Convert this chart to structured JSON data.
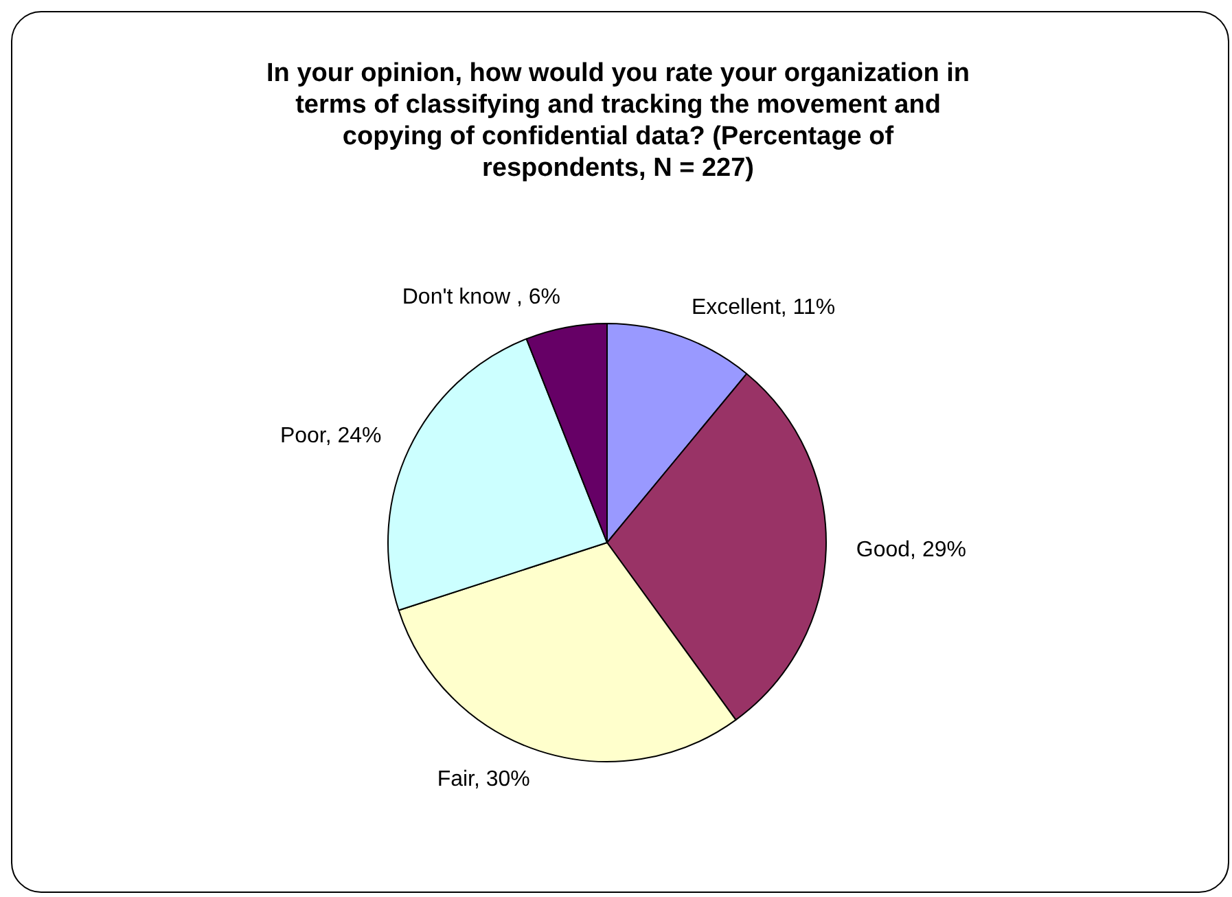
{
  "chart_data": {
    "type": "pie",
    "title": "In your opinion, how would you rate your organization in terms of classifying and tracking the movement and copying of confidential data? (Percentage of respondents, N = 227)",
    "categories": [
      "Excellent",
      "Good",
      "Fair",
      "Poor",
      "Don't know "
    ],
    "values": [
      11,
      29,
      30,
      24,
      6
    ],
    "value_labels": [
      "11%",
      "29%",
      "30%",
      "24%",
      "6%"
    ],
    "colors": [
      "#9999ff",
      "#993366",
      "#ffffcc",
      "#ccffff",
      "#660066"
    ],
    "legend": false
  }
}
